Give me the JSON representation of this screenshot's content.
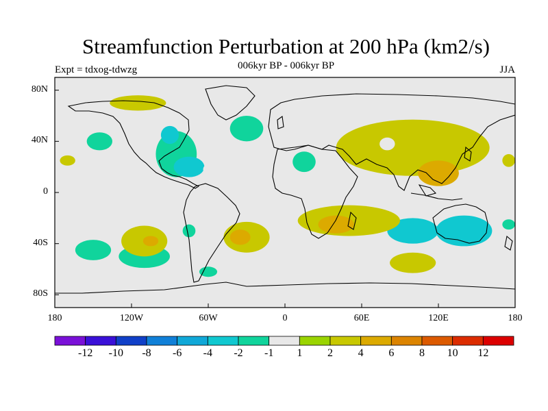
{
  "title": "Streamfunction Perturbation at 200 hPa (km2/s)",
  "subtitle": "006kyr BP - 006kyr BP",
  "experiment": "Expt = tdxog-tdwzg",
  "season": "JJA",
  "map": {
    "projection": "cylindrical equidistant",
    "lon_range": [
      -180,
      180
    ],
    "lat_range": [
      -90,
      90
    ],
    "background_color": "#e8e8e8",
    "y_ticks": [
      {
        "label": "80N",
        "lat": 80
      },
      {
        "label": "40N",
        "lat": 40
      },
      {
        "label": "0",
        "lat": 0
      },
      {
        "label": "40S",
        "lat": -40
      },
      {
        "label": "80S",
        "lat": -80
      }
    ],
    "x_ticks": [
      {
        "label": "180",
        "lon": -180
      },
      {
        "label": "120W",
        "lon": -120
      },
      {
        "label": "60W",
        "lon": -60
      },
      {
        "label": "0",
        "lon": 0
      },
      {
        "label": "60E",
        "lon": 60
      },
      {
        "label": "120E",
        "lon": 120
      },
      {
        "label": "180",
        "lon": 180
      }
    ]
  },
  "colorbar": {
    "colors": [
      "#7a10d8",
      "#3a10d8",
      "#1040c8",
      "#1080d8",
      "#10a8d8",
      "#10c8d0",
      "#10d49c",
      "#e8e8e8",
      "#9ad400",
      "#c8c800",
      "#dcaa00",
      "#dc8400",
      "#dc5a00",
      "#dc2c00",
      "#dc0000"
    ],
    "labels": [
      "-12",
      "-10",
      "-8",
      "-6",
      "-4",
      "-2",
      "-1",
      "1",
      "2",
      "4",
      "6",
      "8",
      "10",
      "12"
    ]
  },
  "anomalies": [
    {
      "lon": 100,
      "lat": 35,
      "rx": 60,
      "ry": 22,
      "level": "2"
    },
    {
      "lon": 120,
      "lat": 15,
      "rx": 16,
      "ry": 10,
      "level": "4"
    },
    {
      "lon": 140,
      "lat": -30,
      "rx": 22,
      "ry": 12,
      "level": "-2"
    },
    {
      "lon": 100,
      "lat": -30,
      "rx": 20,
      "ry": 10,
      "level": "-2"
    },
    {
      "lon": 50,
      "lat": -22,
      "rx": 40,
      "ry": 12,
      "level": "2"
    },
    {
      "lon": 40,
      "lat": -25,
      "rx": 14,
      "ry": 7,
      "level": "4"
    },
    {
      "lon": -30,
      "lat": -35,
      "rx": 18,
      "ry": 12,
      "level": "2"
    },
    {
      "lon": -35,
      "lat": -35,
      "rx": 8,
      "ry": 6,
      "level": "4"
    },
    {
      "lon": -110,
      "lat": -38,
      "rx": 18,
      "ry": 12,
      "level": "2"
    },
    {
      "lon": -105,
      "lat": -38,
      "rx": 6,
      "ry": 4,
      "level": "4"
    },
    {
      "lon": -85,
      "lat": 30,
      "rx": 16,
      "ry": 18,
      "level": "-1"
    },
    {
      "lon": -90,
      "lat": 45,
      "rx": 7,
      "ry": 7,
      "level": "-2"
    },
    {
      "lon": -75,
      "lat": 20,
      "rx": 12,
      "ry": 8,
      "level": "-2"
    },
    {
      "lon": -30,
      "lat": 50,
      "rx": 13,
      "ry": 10,
      "level": "-1"
    },
    {
      "lon": 15,
      "lat": 24,
      "rx": 9,
      "ry": 8,
      "level": "-1"
    },
    {
      "lon": 100,
      "lat": -55,
      "rx": 18,
      "ry": 8,
      "level": "2"
    },
    {
      "lon": -115,
      "lat": 70,
      "rx": 22,
      "ry": 6,
      "level": "2"
    },
    {
      "lon": -145,
      "lat": 40,
      "rx": 10,
      "ry": 7,
      "level": "-1"
    },
    {
      "lon": -110,
      "lat": -50,
      "rx": 20,
      "ry": 9,
      "level": "-1"
    },
    {
      "lon": -150,
      "lat": -45,
      "rx": 14,
      "ry": 8,
      "level": "-1"
    },
    {
      "lon": -75,
      "lat": -30,
      "rx": 5,
      "ry": 5,
      "level": "-1"
    },
    {
      "lon": -60,
      "lat": -62,
      "rx": 7,
      "ry": 4,
      "level": "-1"
    },
    {
      "lon": -170,
      "lat": 25,
      "rx": 6,
      "ry": 4,
      "level": "2"
    },
    {
      "lon": 175,
      "lat": -25,
      "rx": 5,
      "ry": 4,
      "level": "-1"
    },
    {
      "lon": 175,
      "lat": 25,
      "rx": 5,
      "ry": 5,
      "level": "2"
    },
    {
      "lon": 70,
      "lat": 40,
      "rx": 5,
      "ry": 4,
      "level": "1"
    }
  ]
}
